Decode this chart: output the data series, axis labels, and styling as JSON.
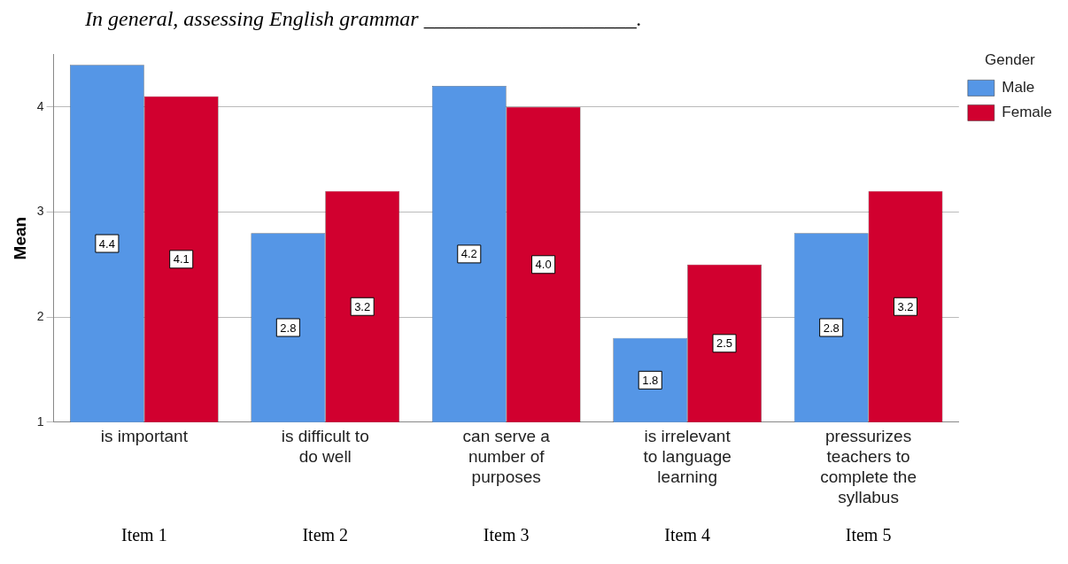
{
  "chart_data": {
    "type": "bar",
    "title": "In general, assessing English grammar ____________________.",
    "categories": [
      "is important",
      "is difficult to do well",
      "can serve a number of purposes",
      "is irrelevant to language learning",
      "pressurizes teachers to complete the syllabus"
    ],
    "ylabel": "Mean",
    "legend_title": "Gender",
    "legend": "top right",
    "series": [
      {
        "name": "Male",
        "color": "#5596e6",
        "values": [
          4.4,
          2.8,
          4.2,
          1.8,
          2.8
        ],
        "value_labels": [
          "4.4",
          "2.8",
          "4.2",
          "1.8",
          "2.8"
        ]
      },
      {
        "name": "Female",
        "color": "#d1002f",
        "values": [
          4.1,
          3.2,
          4.0,
          2.5,
          3.2
        ],
        "value_labels": [
          "4.1",
          "3.2",
          "4.0",
          "2.5",
          "3.2"
        ]
      }
    ],
    "ylim": [
      1,
      4.5
    ],
    "yticks": [
      1,
      2,
      3,
      4
    ],
    "grid": "y",
    "annotations": [
      "Item 1",
      "Item 2",
      "Item 3",
      "Item 4",
      "Item 5"
    ]
  }
}
